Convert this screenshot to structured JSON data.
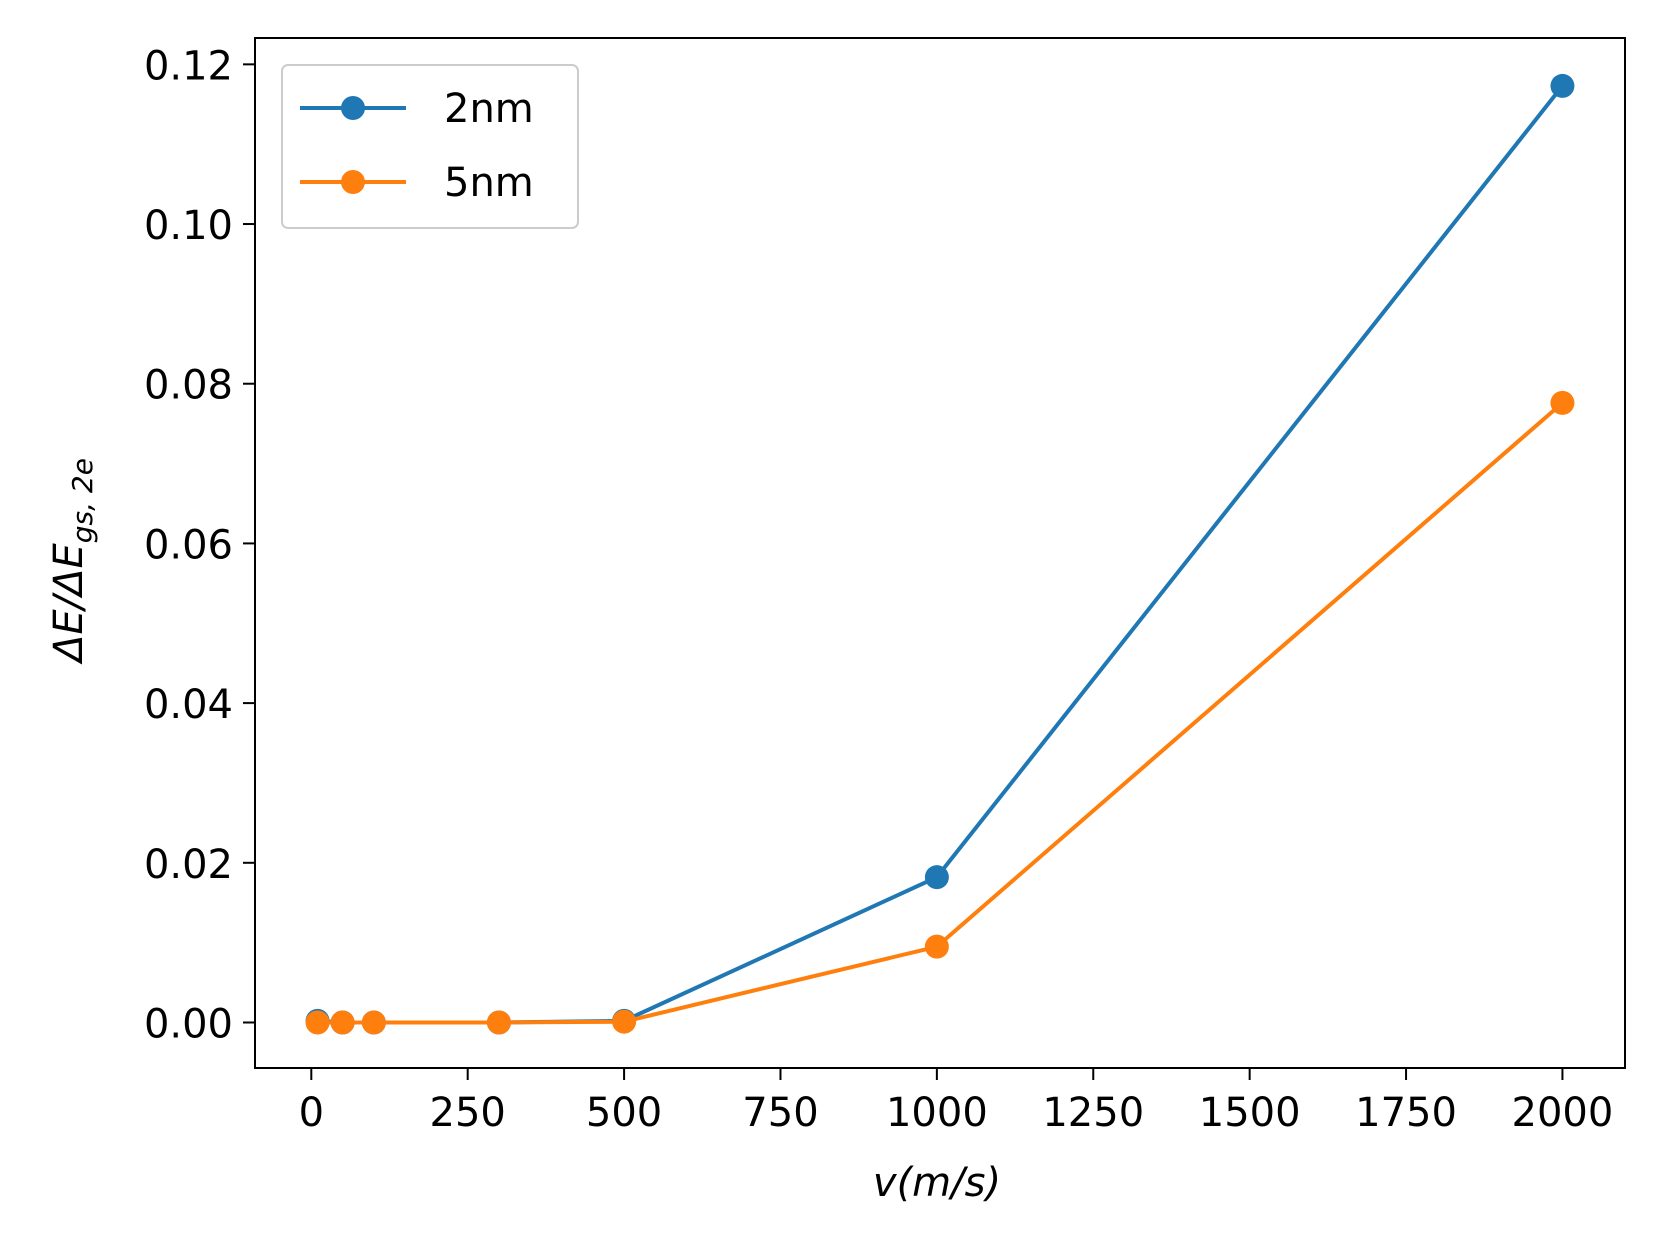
{
  "chart_data": {
    "type": "line",
    "title": "",
    "xlabel": "v(m/s)",
    "ylabel": "ΔE/ΔE_{gs, 2e}",
    "ylabel_parts": {
      "main": "ΔE/ΔE",
      "subscript": "gs, 2e"
    },
    "xlim": [
      -90,
      2100
    ],
    "ylim": [
      -0.0057,
      0.1233
    ],
    "xticks": [
      0,
      250,
      500,
      750,
      1000,
      1250,
      1500,
      1750,
      2000
    ],
    "xtick_labels": [
      "0",
      "250",
      "500",
      "750",
      "1000",
      "1250",
      "1500",
      "1750",
      "2000"
    ],
    "yticks": [
      0.0,
      0.02,
      0.04,
      0.06,
      0.08,
      0.1,
      0.12
    ],
    "ytick_labels": [
      "0.00",
      "0.02",
      "0.04",
      "0.06",
      "0.08",
      "0.10",
      "0.12"
    ],
    "grid": false,
    "legend_position": "top-left",
    "series": [
      {
        "name": "2nm",
        "color": "#1f77b4",
        "x": [
          10,
          50,
          100,
          300,
          500,
          1000,
          2000
        ],
        "y": [
          0.0002,
          0.0,
          0.0,
          0.0,
          0.0002,
          0.0182,
          0.1173
        ]
      },
      {
        "name": "5nm",
        "color": "#ff7f0e",
        "x": [
          10,
          50,
          100,
          300,
          500,
          1000,
          2000
        ],
        "y": [
          0.0,
          0.0,
          0.0,
          0.0,
          0.0001,
          0.0095,
          0.0776
        ]
      }
    ]
  }
}
